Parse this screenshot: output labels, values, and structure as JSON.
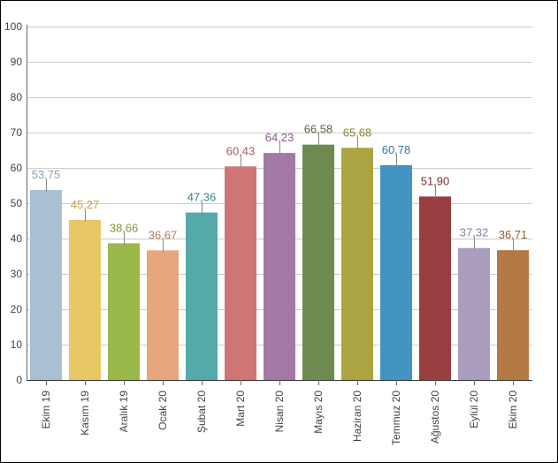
{
  "chart_data": {
    "type": "bar",
    "categories": [
      "Ekim 19",
      "Kasım 19",
      "Aralık 19",
      "Ocak 20",
      "Şubat 20",
      "Mart 20",
      "Nisan 20",
      "Mayıs 20",
      "Haziran 20",
      "Temmuz 20",
      "Ağustos 20",
      "Eylül 20",
      "Ekim 20"
    ],
    "values": [
      53.75,
      45.27,
      38.66,
      36.67,
      47.36,
      60.43,
      64.23,
      66.58,
      65.68,
      60.78,
      51.9,
      37.32,
      36.71
    ],
    "data_labels": [
      "53,75",
      "45,27",
      "38,66",
      "36,67",
      "47,36",
      "60,43",
      "64,23",
      "66,58",
      "65,68",
      "60,78",
      "51,90",
      "37,32",
      "36,71"
    ],
    "colors": [
      "#a9c0d3",
      "#e8c765",
      "#9bb84a",
      "#e8a67e",
      "#55a9a8",
      "#d07576",
      "#a37aa6",
      "#6e8a4e",
      "#aca442",
      "#4394c3",
      "#993d40",
      "#ab9dbe",
      "#b27a42"
    ],
    "label_colors": [
      "#8a9fb0",
      "#c0a34e",
      "#7d9538",
      "#b07c5a",
      "#3f8584",
      "#a85a5c",
      "#845e88",
      "#556c3a",
      "#8a8433",
      "#2f78a5",
      "#7c2f32",
      "#8a7ea0",
      "#8c5f33"
    ],
    "y_ticks": [
      "0",
      "10",
      "20",
      "30",
      "40",
      "50",
      "60",
      "70",
      "80",
      "90",
      "100"
    ],
    "ylim": [
      0,
      100
    ],
    "grid": true,
    "title": "",
    "xlabel": "",
    "ylabel": ""
  }
}
